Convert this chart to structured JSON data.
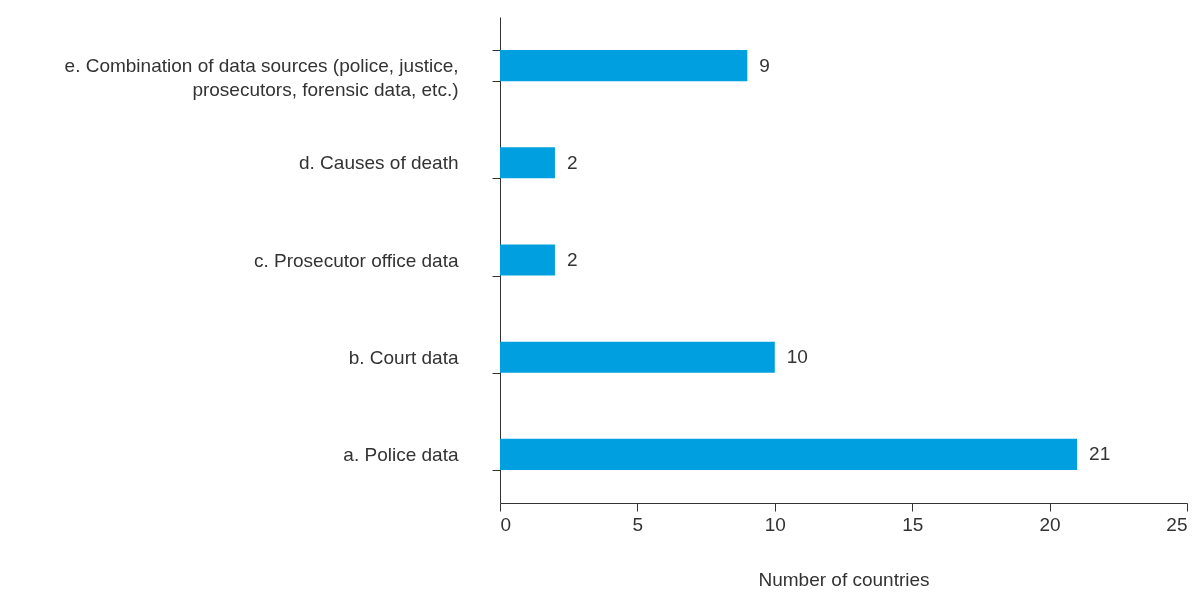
{
  "chart_data": {
    "type": "bar",
    "orientation": "horizontal",
    "xlabel": "Number of countries",
    "categories": [
      "e. Combination of data sources (police, justice, prosecutors, forensic data, etc.)",
      "d. Causes of death",
      "c. Prosecutor office data",
      "b. Court data",
      "a. Police data"
    ],
    "values": [
      9,
      2,
      2,
      10,
      21
    ],
    "color": "#009fe0",
    "data_labels": true,
    "xlim": [
      0,
      25
    ],
    "xticks": [
      0,
      5,
      10,
      15,
      20,
      25
    ],
    "grid": false
  }
}
